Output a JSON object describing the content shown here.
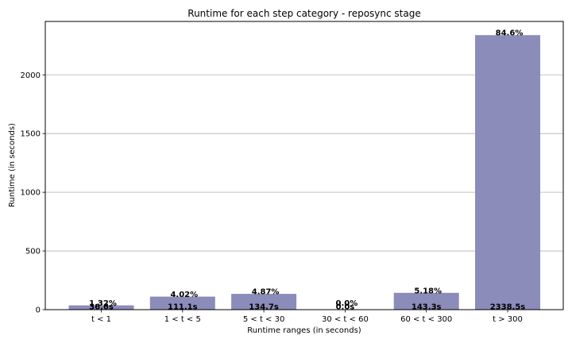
{
  "chart_data": {
    "type": "bar",
    "title": "Runtime for each step category - reposync stage",
    "xlabel": "Runtime ranges (in seconds)",
    "ylabel": "Runtime (in seconds)",
    "categories": [
      "t < 1",
      "1 < t < 5",
      "5 < t < 30",
      "30 < t < 60",
      "60 < t < 300",
      "t > 300"
    ],
    "values": [
      36.6,
      111.1,
      134.7,
      0.0,
      143.3,
      2338.5
    ],
    "value_labels": [
      "36.6s",
      "111.1s",
      "134.7s",
      "0.0s",
      "143.3s",
      "2338.5s"
    ],
    "percent_labels": [
      "1.32%",
      "4.02%",
      "4.87%",
      "0.0%",
      "5.18%",
      "84.6%"
    ],
    "yticks": [
      0,
      500,
      1000,
      1500,
      2000
    ],
    "ytick_labels": [
      "0",
      "500",
      "1000",
      "1500",
      "2000"
    ],
    "ylim": [
      0,
      2455
    ],
    "grid": "y",
    "bar_color": "#8b8cba"
  }
}
